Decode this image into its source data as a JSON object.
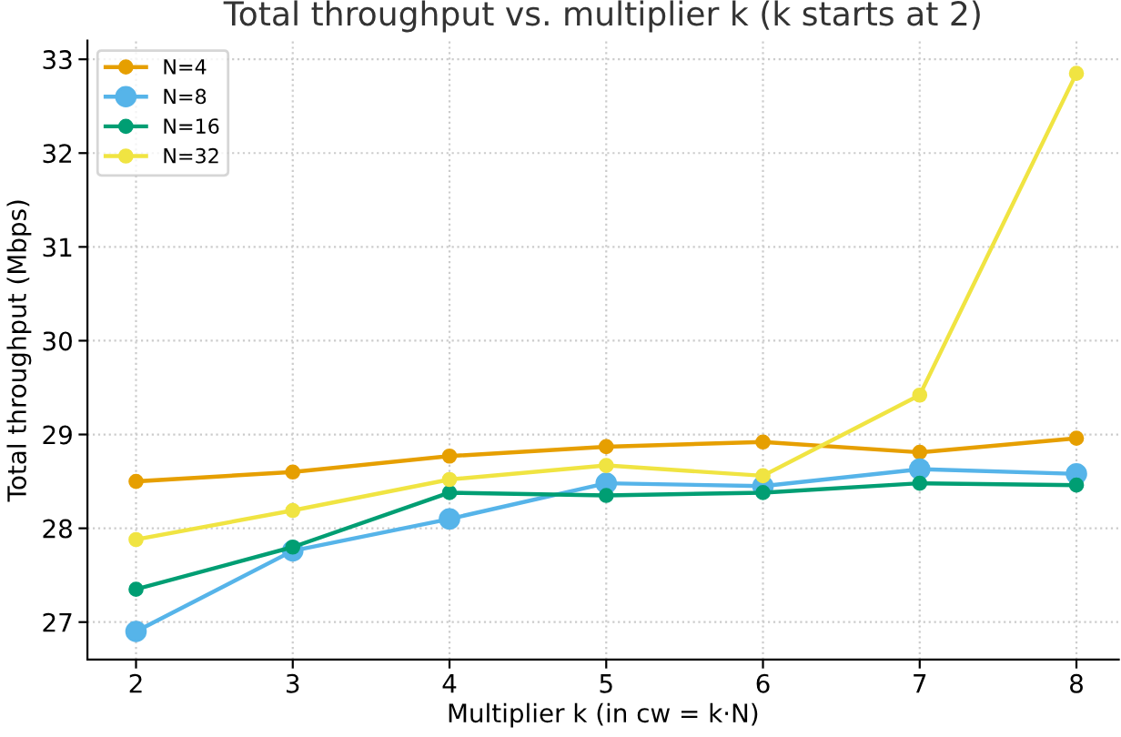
{
  "chart_data": {
    "type": "line",
    "title": "Total throughput vs. multiplier k (k starts at 2)",
    "xlabel": "Multiplier k (in cw = k·N)",
    "ylabel": "Total throughput (Mbps)",
    "x": [
      2,
      3,
      4,
      5,
      6,
      7,
      8
    ],
    "series": [
      {
        "name": "N=4",
        "color": "#e69f00",
        "values": [
          28.5,
          28.6,
          28.77,
          28.87,
          28.92,
          28.81,
          28.96
        ]
      },
      {
        "name": "N=8",
        "color": "#56b4e9",
        "values": [
          26.9,
          27.76,
          28.1,
          28.48,
          28.45,
          28.63,
          28.58
        ]
      },
      {
        "name": "N=16",
        "color": "#009e73",
        "values": [
          27.35,
          27.8,
          28.38,
          28.35,
          28.38,
          28.48,
          28.46
        ]
      },
      {
        "name": "N=32",
        "color": "#f0e442",
        "values": [
          27.88,
          28.19,
          28.52,
          28.67,
          28.56,
          29.42,
          32.85
        ]
      }
    ],
    "xlim": [
      1.69,
      8.27
    ],
    "ylim": [
      26.6,
      33.2
    ],
    "xticks": [
      2,
      3,
      4,
      5,
      6,
      7,
      8
    ],
    "yticks": [
      27,
      28,
      29,
      30,
      31,
      32,
      33
    ],
    "grid": true,
    "legend": "top left",
    "marker": "circle",
    "line_style": "solid"
  }
}
